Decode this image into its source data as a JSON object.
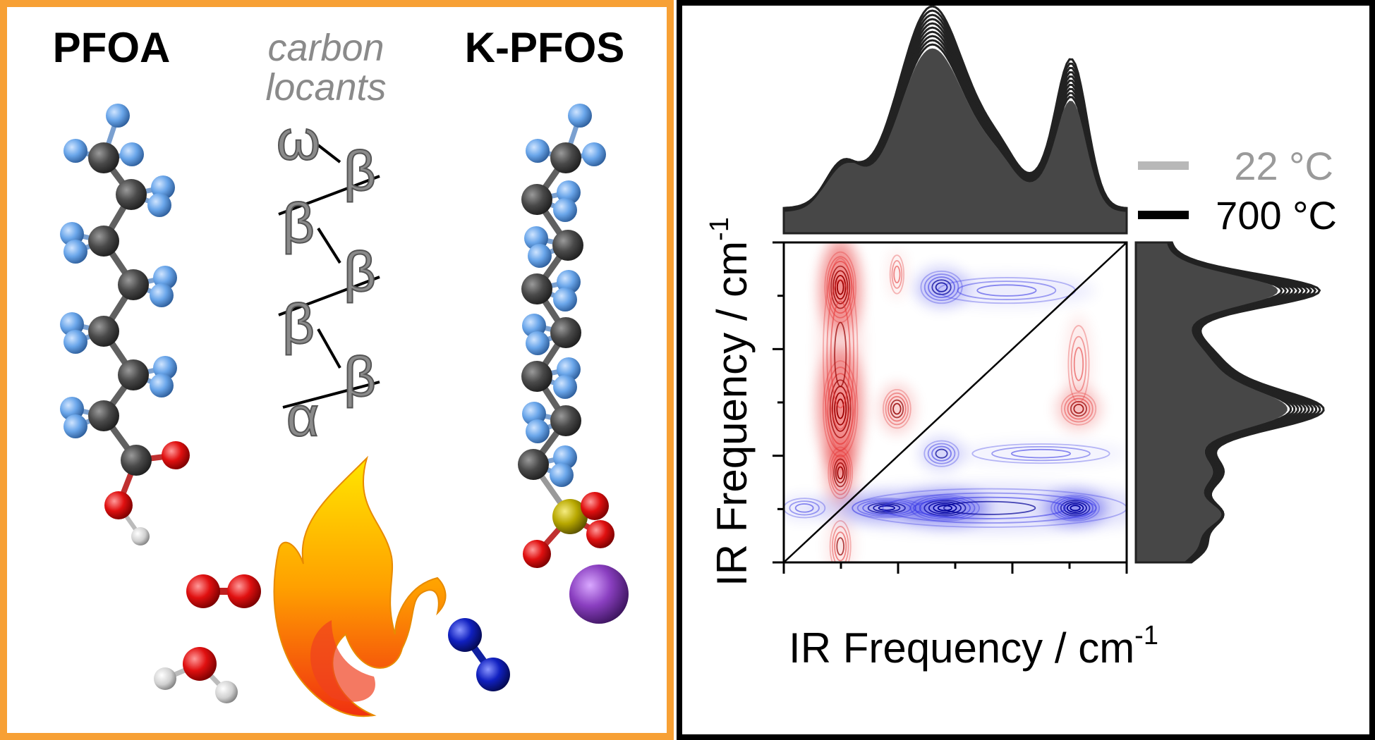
{
  "left_panel": {
    "border_color": "#f7a035",
    "title_left": "PFOA",
    "title_right": "K-PFOS",
    "locants_title_line1": "carbon",
    "locants_title_line2": "locants",
    "locants": [
      "ω",
      "β",
      "β",
      "β",
      "β",
      "β",
      "α"
    ],
    "atom_colors": {
      "carbon": "#505050",
      "fluorine": "#6aa6ea",
      "oxygen": "#e01010",
      "hydrogen": "#e0e0e0",
      "sulfur": "#b8a800",
      "potassium": "#8a3fc0",
      "nitrogen": "#1020c0"
    }
  },
  "right_panel": {
    "legend": [
      {
        "label": "22 °C",
        "color": "#b8b8b8"
      },
      {
        "label": "700 °C",
        "color": "#000000"
      }
    ],
    "x_axis_label": "IR Frequency / cm",
    "x_axis_sup": "-1",
    "y_axis_label": "IR Frequency / cm",
    "y_axis_sup": "-1"
  },
  "chart_data": {
    "type": "heatmap",
    "description_type": "2D correlation contour map with marginal temperature-series spectra",
    "xlabel": "IR Frequency / cm-1",
    "ylabel": "IR Frequency / cm-1",
    "legend": [
      "22 °C",
      "700 °C"
    ],
    "legend_placement": "top-right",
    "colors": {
      "positive": "#e00000",
      "negative": "#0000e0"
    },
    "tick_labels_shown": false
  }
}
